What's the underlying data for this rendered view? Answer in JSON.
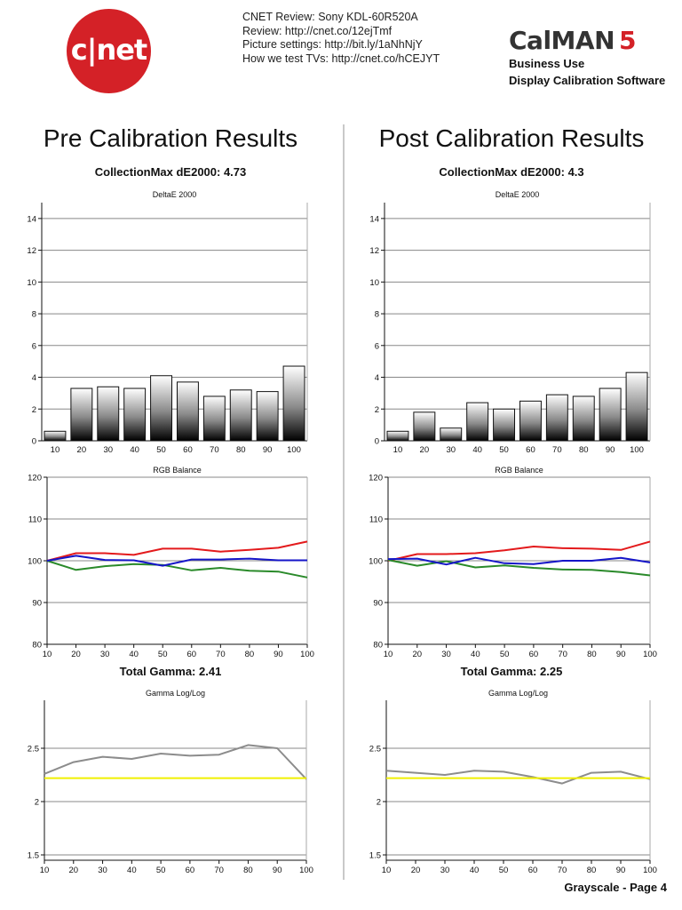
{
  "header": {
    "logo_text": "c|net",
    "review_lines": [
      "CNET Review: Sony KDL-60R520A",
      "Review: http://cnet.co/12ejTmf",
      "Picture settings: http://bit.ly/1aNhNjY",
      "How we test TVs: http://cnet.co/hCEJYT"
    ],
    "calman_title": "CalMAN",
    "calman_version": "5",
    "calman_lines": [
      "Business Use",
      "Display Calibration Software"
    ]
  },
  "columns": [
    {
      "heading": "Pre Calibration Results",
      "collection_label": "CollectionMax dE2000: 4.73",
      "gamma_label": "Total Gamma: 2.41"
    },
    {
      "heading": "Post Calibration Results",
      "collection_label": "CollectionMax dE2000: 4.3",
      "gamma_label": "Total Gamma: 2.25"
    }
  ],
  "footer": "Grayscale - Page 4",
  "colors": {
    "red": "#e31a1c",
    "green": "#2a8a2a",
    "blue": "#1515c8",
    "gamma": "#8c8c8c",
    "target": "#f0f000"
  },
  "chart_data": [
    {
      "id": "pre-deltae",
      "type": "bar",
      "title": "DeltaE 2000",
      "categories": [
        "10",
        "20",
        "30",
        "40",
        "50",
        "60",
        "70",
        "80",
        "90",
        "100"
      ],
      "values": [
        0.6,
        3.3,
        3.4,
        3.3,
        4.1,
        3.7,
        2.8,
        3.2,
        3.1,
        4.7
      ],
      "ylim": [
        0,
        15
      ],
      "yticks": [
        0,
        2,
        4,
        6,
        8,
        10,
        12,
        14
      ],
      "grid": true
    },
    {
      "id": "post-deltae",
      "type": "bar",
      "title": "DeltaE 2000",
      "categories": [
        "10",
        "20",
        "30",
        "40",
        "50",
        "60",
        "70",
        "80",
        "90",
        "100"
      ],
      "values": [
        0.6,
        1.8,
        0.8,
        2.4,
        2.0,
        2.5,
        2.9,
        2.8,
        3.3,
        4.3
      ],
      "ylim": [
        0,
        15
      ],
      "yticks": [
        0,
        2,
        4,
        6,
        8,
        10,
        12,
        14
      ],
      "grid": true
    },
    {
      "id": "pre-rgb",
      "type": "line",
      "title": "RGB Balance",
      "x": [
        10,
        20,
        30,
        40,
        50,
        60,
        70,
        80,
        90,
        100
      ],
      "series": [
        {
          "color": "red",
          "values": [
            100,
            101.8,
            101.8,
            101.4,
            102.9,
            102.9,
            102.2,
            102.6,
            103.1,
            104.6
          ]
        },
        {
          "color": "green",
          "values": [
            100,
            97.8,
            98.7,
            99.2,
            99.0,
            97.7,
            98.3,
            97.6,
            97.4,
            96.0
          ]
        },
        {
          "color": "blue",
          "values": [
            100,
            101.2,
            100.2,
            100.1,
            98.8,
            100.3,
            100.3,
            100.5,
            100.1,
            100.1
          ]
        }
      ],
      "ylim": [
        80,
        120
      ],
      "yticks": [
        80,
        90,
        100,
        110,
        120
      ],
      "xticks": [
        10,
        20,
        30,
        40,
        50,
        60,
        70,
        80,
        90,
        100
      ],
      "grid": true
    },
    {
      "id": "post-rgb",
      "type": "line",
      "title": "RGB Balance",
      "x": [
        10,
        20,
        30,
        40,
        50,
        60,
        70,
        80,
        90,
        100
      ],
      "series": [
        {
          "color": "red",
          "values": [
            100,
            101.6,
            101.6,
            101.8,
            102.5,
            103.4,
            103.0,
            102.9,
            102.6,
            104.6
          ]
        },
        {
          "color": "green",
          "values": [
            100.2,
            98.8,
            99.9,
            98.4,
            98.9,
            98.3,
            97.9,
            97.8,
            97.3,
            96.5
          ]
        },
        {
          "color": "blue",
          "values": [
            100.4,
            100.5,
            99.1,
            100.7,
            99.4,
            99.2,
            100.0,
            100.0,
            100.7,
            99.6
          ]
        }
      ],
      "ylim": [
        80,
        120
      ],
      "yticks": [
        80,
        90,
        100,
        110,
        120
      ],
      "xticks": [
        10,
        20,
        30,
        40,
        50,
        60,
        70,
        80,
        90,
        100
      ],
      "grid": true
    },
    {
      "id": "pre-gamma",
      "type": "line",
      "title": "Gamma Log/Log",
      "x": [
        10,
        20,
        30,
        40,
        50,
        60,
        70,
        80,
        90,
        100
      ],
      "series": [
        {
          "color": "gamma",
          "values": [
            2.26,
            2.37,
            2.42,
            2.4,
            2.45,
            2.43,
            2.44,
            2.53,
            2.5,
            2.21
          ]
        },
        {
          "color": "target",
          "values": [
            2.22,
            2.22,
            2.22,
            2.22,
            2.22,
            2.22,
            2.22,
            2.22,
            2.22,
            2.22
          ]
        }
      ],
      "ylim": [
        1.45,
        2.95
      ],
      "yticks": [
        1.5,
        2,
        2.5
      ],
      "yticklabels": [
        "1.5",
        "2",
        "2.5"
      ],
      "xticks": [
        10,
        20,
        30,
        40,
        50,
        60,
        70,
        80,
        90,
        100
      ],
      "grid": true
    },
    {
      "id": "post-gamma",
      "type": "line",
      "title": "Gamma Log/Log",
      "x": [
        10,
        20,
        30,
        40,
        50,
        60,
        70,
        80,
        90,
        100
      ],
      "series": [
        {
          "color": "gamma",
          "values": [
            2.29,
            2.27,
            2.25,
            2.29,
            2.28,
            2.23,
            2.17,
            2.27,
            2.28,
            2.21
          ]
        },
        {
          "color": "target",
          "values": [
            2.22,
            2.22,
            2.22,
            2.22,
            2.22,
            2.22,
            2.22,
            2.22,
            2.22,
            2.22
          ]
        }
      ],
      "ylim": [
        1.45,
        2.95
      ],
      "yticks": [
        1.5,
        2,
        2.5
      ],
      "yticklabels": [
        "1.5",
        "2",
        "2.5"
      ],
      "xticks": [
        10,
        20,
        30,
        40,
        50,
        60,
        70,
        80,
        90,
        100
      ],
      "grid": true
    }
  ]
}
